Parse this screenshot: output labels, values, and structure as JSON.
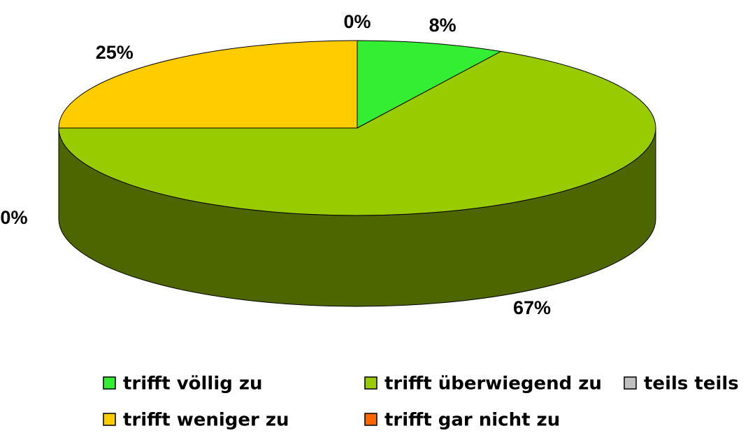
{
  "chart_data": {
    "type": "pie3d",
    "categories": [
      "trifft völlig zu",
      "trifft überwiegend zu",
      "teils teils",
      "trifft weniger zu",
      "trifft gar nicht zu"
    ],
    "values": [
      8,
      67,
      0,
      25,
      0
    ],
    "value_labels": [
      "8%",
      "67%",
      "0%",
      "25%",
      "0%"
    ],
    "colors": [
      "#33ee33",
      "#99cc00",
      "#c0c0c0",
      "#ffcc00",
      "#ff6600"
    ]
  }
}
